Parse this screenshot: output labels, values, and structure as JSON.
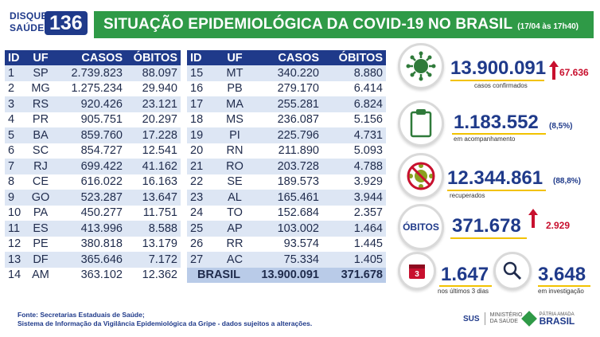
{
  "header": {
    "disque_line1": "DISQUE",
    "disque_line2": "SAÚDE",
    "disque_number": "136",
    "title": "SITUAÇÃO EPIDEMIOLÓGICA DA COVID-19 NO BRASIL",
    "date": "(17/04 às 17h40)"
  },
  "table_headers": {
    "id": "ID",
    "uf": "UF",
    "casos": "CASOS",
    "obitos": "ÓBITOS"
  },
  "table_left": [
    {
      "id": "1",
      "uf": "SP",
      "casos": "2.739.823",
      "obitos": "88.097"
    },
    {
      "id": "2",
      "uf": "MG",
      "casos": "1.275.234",
      "obitos": "29.940"
    },
    {
      "id": "3",
      "uf": "RS",
      "casos": "920.426",
      "obitos": "23.121"
    },
    {
      "id": "4",
      "uf": "PR",
      "casos": "905.751",
      "obitos": "20.297"
    },
    {
      "id": "5",
      "uf": "BA",
      "casos": "859.760",
      "obitos": "17.228"
    },
    {
      "id": "6",
      "uf": "SC",
      "casos": "854.727",
      "obitos": "12.541"
    },
    {
      "id": "7",
      "uf": "RJ",
      "casos": "699.422",
      "obitos": "41.162"
    },
    {
      "id": "8",
      "uf": "CE",
      "casos": "616.022",
      "obitos": "16.163"
    },
    {
      "id": "9",
      "uf": "GO",
      "casos": "523.287",
      "obitos": "13.647"
    },
    {
      "id": "10",
      "uf": "PA",
      "casos": "450.277",
      "obitos": "11.751"
    },
    {
      "id": "11",
      "uf": "ES",
      "casos": "413.996",
      "obitos": "8.588"
    },
    {
      "id": "12",
      "uf": "PE",
      "casos": "380.818",
      "obitos": "13.179"
    },
    {
      "id": "13",
      "uf": "DF",
      "casos": "365.646",
      "obitos": "7.172"
    },
    {
      "id": "14",
      "uf": "AM",
      "casos": "363.102",
      "obitos": "12.362"
    }
  ],
  "table_right": [
    {
      "id": "15",
      "uf": "MT",
      "casos": "340.220",
      "obitos": "8.880"
    },
    {
      "id": "16",
      "uf": "PB",
      "casos": "279.170",
      "obitos": "6.414"
    },
    {
      "id": "17",
      "uf": "MA",
      "casos": "255.281",
      "obitos": "6.824"
    },
    {
      "id": "18",
      "uf": "MS",
      "casos": "236.087",
      "obitos": "5.156"
    },
    {
      "id": "19",
      "uf": "PI",
      "casos": "225.796",
      "obitos": "4.731"
    },
    {
      "id": "20",
      "uf": "RN",
      "casos": "211.890",
      "obitos": "5.093"
    },
    {
      "id": "21",
      "uf": "RO",
      "casos": "203.728",
      "obitos": "4.788"
    },
    {
      "id": "22",
      "uf": "SE",
      "casos": "189.573",
      "obitos": "3.929"
    },
    {
      "id": "23",
      "uf": "AL",
      "casos": "165.461",
      "obitos": "3.944"
    },
    {
      "id": "24",
      "uf": "TO",
      "casos": "152.684",
      "obitos": "2.357"
    },
    {
      "id": "25",
      "uf": "AP",
      "casos": "103.002",
      "obitos": "1.464"
    },
    {
      "id": "26",
      "uf": "RR",
      "casos": "93.574",
      "obitos": "1.445"
    },
    {
      "id": "27",
      "uf": "AC",
      "casos": "75.334",
      "obitos": "1.405"
    }
  ],
  "total": {
    "label": "BRASIL",
    "casos": "13.900.091",
    "obitos": "371.678"
  },
  "stats": {
    "confirmados": {
      "value": "13.900.091",
      "increase": "67.636",
      "label": "casos confirmados"
    },
    "acompanhamento": {
      "value": "1.183.552",
      "pct": "(8,5%)",
      "label": "em acompanhamento"
    },
    "recuperados": {
      "value": "12.344.861",
      "pct": "(88,8%)",
      "label": "recuperados"
    },
    "obitos": {
      "badge": "ÓBITOS",
      "value": "371.678",
      "increase": "2.929"
    },
    "ultimos": {
      "value": "1.647",
      "label": "nos últimos 3 dias",
      "calendar_num": "3"
    },
    "investigacao": {
      "value": "3.648",
      "label": "em investigação"
    }
  },
  "footer": {
    "line1": "Fonte: Secretarias Estaduais de Saúde;",
    "line2": "Sistema de Informação da Vigilância Epidemiológica da Gripe - dados sujeitos a alterações."
  },
  "logos": {
    "sus": "SUS",
    "ministerio": "MINISTÉRIO DA SAÚDE",
    "patria": "PÁTRIA AMADA",
    "brasil": "BRASIL"
  },
  "colors": {
    "green": "#2f9a47",
    "navy": "#1f3a8a",
    "red": "#c8102e",
    "yellow": "#f2c200"
  }
}
